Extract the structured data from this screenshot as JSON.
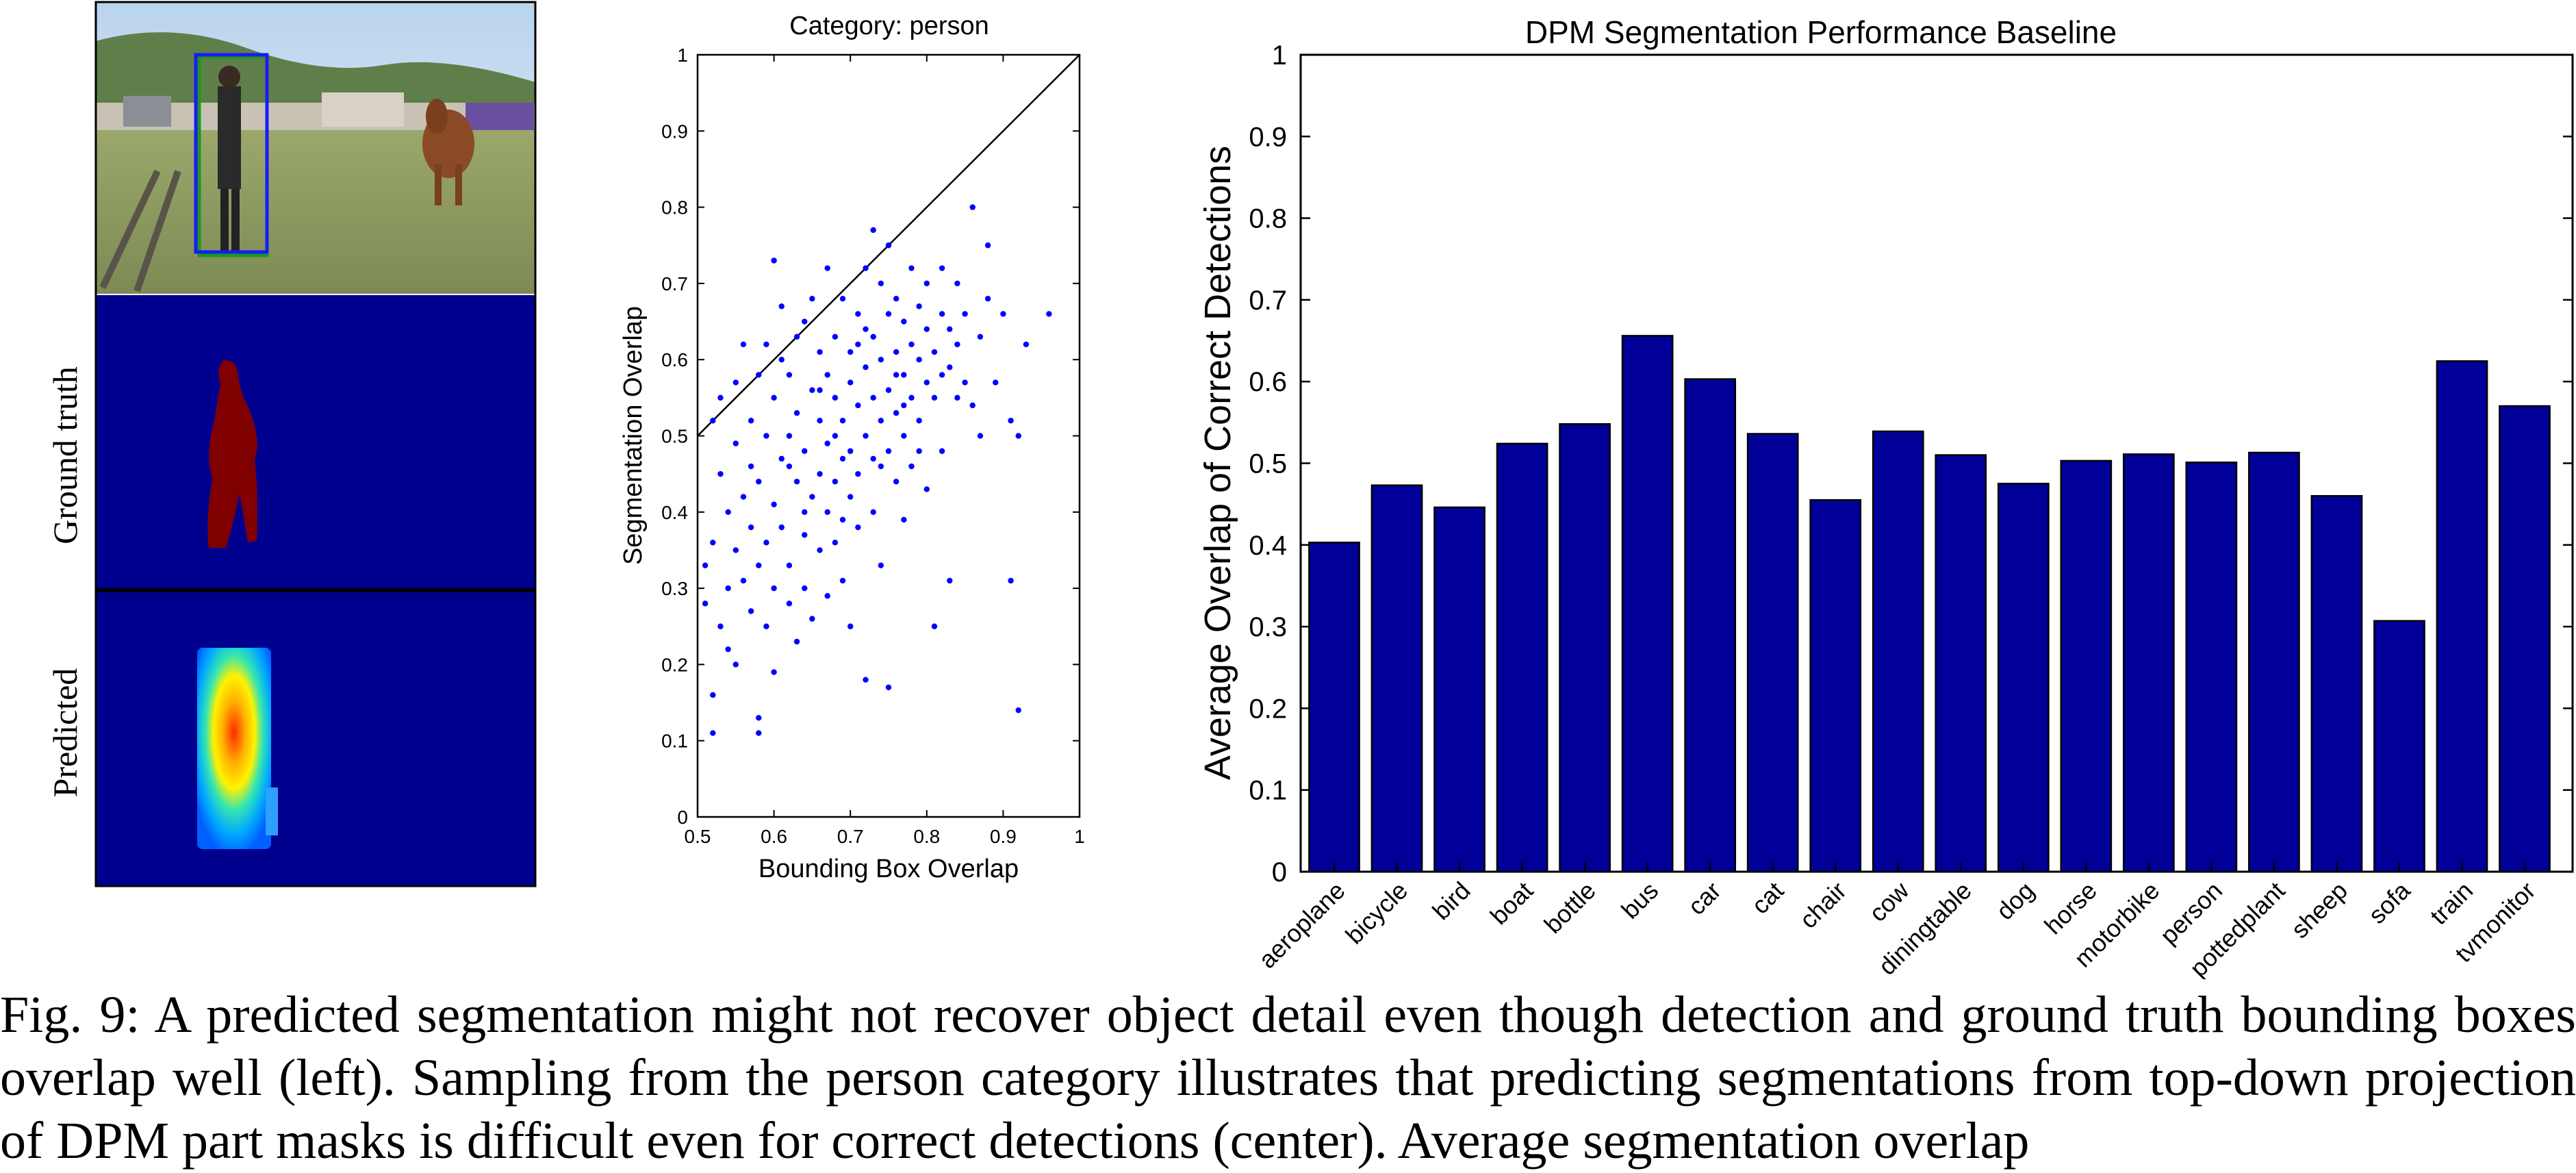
{
  "left_panel": {
    "row_labels": [
      "Ground truth",
      "Predicted"
    ]
  },
  "chart_data": [
    {
      "type": "scatter",
      "title": "Category: person",
      "xlabel": "Bounding Box Overlap",
      "ylabel": "Segmentation Overlap",
      "xlim": [
        0.5,
        1
      ],
      "ylim": [
        0,
        1
      ],
      "xticks": [
        "0.5",
        "0.6",
        "0.7",
        "0.8",
        "0.9",
        "1"
      ],
      "yticks": [
        "0",
        "0.1",
        "0.2",
        "0.3",
        "0.4",
        "0.5",
        "0.6",
        "0.7",
        "0.8",
        "0.9",
        "1"
      ],
      "reference_line": "y = x",
      "marker_color": "#0000ff",
      "points": [
        [
          0.51,
          0.28
        ],
        [
          0.51,
          0.33
        ],
        [
          0.52,
          0.16
        ],
        [
          0.52,
          0.11
        ],
        [
          0.52,
          0.52
        ],
        [
          0.52,
          0.36
        ],
        [
          0.53,
          0.45
        ],
        [
          0.53,
          0.25
        ],
        [
          0.53,
          0.55
        ],
        [
          0.54,
          0.4
        ],
        [
          0.54,
          0.22
        ],
        [
          0.54,
          0.3
        ],
        [
          0.55,
          0.49
        ],
        [
          0.55,
          0.57
        ],
        [
          0.55,
          0.35
        ],
        [
          0.55,
          0.2
        ],
        [
          0.56,
          0.42
        ],
        [
          0.56,
          0.31
        ],
        [
          0.56,
          0.62
        ],
        [
          0.57,
          0.46
        ],
        [
          0.57,
          0.27
        ],
        [
          0.57,
          0.38
        ],
        [
          0.57,
          0.52
        ],
        [
          0.58,
          0.13
        ],
        [
          0.58,
          0.11
        ],
        [
          0.58,
          0.33
        ],
        [
          0.58,
          0.58
        ],
        [
          0.58,
          0.44
        ],
        [
          0.59,
          0.36
        ],
        [
          0.59,
          0.5
        ],
        [
          0.59,
          0.62
        ],
        [
          0.59,
          0.25
        ],
        [
          0.6,
          0.19
        ],
        [
          0.6,
          0.41
        ],
        [
          0.6,
          0.55
        ],
        [
          0.6,
          0.73
        ],
        [
          0.6,
          0.3
        ],
        [
          0.61,
          0.47
        ],
        [
          0.61,
          0.38
        ],
        [
          0.61,
          0.6
        ],
        [
          0.61,
          0.67
        ],
        [
          0.62,
          0.28
        ],
        [
          0.62,
          0.5
        ],
        [
          0.62,
          0.33
        ],
        [
          0.62,
          0.58
        ],
        [
          0.63,
          0.44
        ],
        [
          0.63,
          0.63
        ],
        [
          0.63,
          0.23
        ],
        [
          0.63,
          0.53
        ],
        [
          0.64,
          0.37
        ],
        [
          0.64,
          0.48
        ],
        [
          0.64,
          0.65
        ],
        [
          0.64,
          0.3
        ],
        [
          0.65,
          0.42
        ],
        [
          0.65,
          0.56
        ],
        [
          0.65,
          0.26
        ],
        [
          0.65,
          0.68
        ],
        [
          0.66,
          0.45
        ],
        [
          0.66,
          0.52
        ],
        [
          0.66,
          0.35
        ],
        [
          0.66,
          0.61
        ],
        [
          0.67,
          0.4
        ],
        [
          0.67,
          0.49
        ],
        [
          0.67,
          0.58
        ],
        [
          0.67,
          0.72
        ],
        [
          0.67,
          0.29
        ],
        [
          0.68,
          0.44
        ],
        [
          0.68,
          0.55
        ],
        [
          0.68,
          0.63
        ],
        [
          0.68,
          0.36
        ],
        [
          0.69,
          0.47
        ],
        [
          0.69,
          0.52
        ],
        [
          0.69,
          0.68
        ],
        [
          0.69,
          0.31
        ],
        [
          0.7,
          0.42
        ],
        [
          0.7,
          0.57
        ],
        [
          0.7,
          0.61
        ],
        [
          0.7,
          0.48
        ],
        [
          0.7,
          0.25
        ],
        [
          0.71,
          0.54
        ],
        [
          0.71,
          0.45
        ],
        [
          0.71,
          0.66
        ],
        [
          0.71,
          0.38
        ],
        [
          0.72,
          0.5
        ],
        [
          0.72,
          0.59
        ],
        [
          0.72,
          0.72
        ],
        [
          0.72,
          0.18
        ],
        [
          0.73,
          0.47
        ],
        [
          0.73,
          0.55
        ],
        [
          0.73,
          0.63
        ],
        [
          0.73,
          0.77
        ],
        [
          0.73,
          0.4
        ],
        [
          0.74,
          0.52
        ],
        [
          0.74,
          0.6
        ],
        [
          0.74,
          0.7
        ],
        [
          0.74,
          0.33
        ],
        [
          0.75,
          0.48
        ],
        [
          0.75,
          0.56
        ],
        [
          0.75,
          0.66
        ],
        [
          0.75,
          0.17
        ],
        [
          0.75,
          0.75
        ],
        [
          0.76,
          0.53
        ],
        [
          0.76,
          0.61
        ],
        [
          0.76,
          0.44
        ],
        [
          0.76,
          0.68
        ],
        [
          0.77,
          0.5
        ],
        [
          0.77,
          0.58
        ],
        [
          0.77,
          0.65
        ],
        [
          0.77,
          0.39
        ],
        [
          0.78,
          0.55
        ],
        [
          0.78,
          0.62
        ],
        [
          0.78,
          0.72
        ],
        [
          0.78,
          0.46
        ],
        [
          0.79,
          0.52
        ],
        [
          0.79,
          0.6
        ],
        [
          0.79,
          0.67
        ],
        [
          0.8,
          0.57
        ],
        [
          0.8,
          0.64
        ],
        [
          0.8,
          0.43
        ],
        [
          0.8,
          0.7
        ],
        [
          0.81,
          0.25
        ],
        [
          0.81,
          0.55
        ],
        [
          0.81,
          0.61
        ],
        [
          0.82,
          0.66
        ],
        [
          0.82,
          0.48
        ],
        [
          0.82,
          0.72
        ],
        [
          0.83,
          0.59
        ],
        [
          0.83,
          0.31
        ],
        [
          0.83,
          0.64
        ],
        [
          0.84,
          0.55
        ],
        [
          0.84,
          0.7
        ],
        [
          0.84,
          0.62
        ],
        [
          0.85,
          0.57
        ],
        [
          0.85,
          0.66
        ],
        [
          0.86,
          0.54
        ],
        [
          0.86,
          0.8
        ],
        [
          0.87,
          0.63
        ],
        [
          0.87,
          0.5
        ],
        [
          0.88,
          0.68
        ],
        [
          0.88,
          0.75
        ],
        [
          0.89,
          0.57
        ],
        [
          0.9,
          0.66
        ],
        [
          0.91,
          0.31
        ],
        [
          0.91,
          0.52
        ],
        [
          0.92,
          0.5
        ],
        [
          0.92,
          0.14
        ],
        [
          0.93,
          0.62
        ],
        [
          0.96,
          0.66
        ],
        [
          0.62,
          0.46
        ],
        [
          0.66,
          0.56
        ],
        [
          0.69,
          0.39
        ],
        [
          0.71,
          0.62
        ],
        [
          0.74,
          0.46
        ],
        [
          0.77,
          0.54
        ],
        [
          0.79,
          0.48
        ],
        [
          0.82,
          0.58
        ],
        [
          0.64,
          0.4
        ],
        [
          0.68,
          0.5
        ],
        [
          0.72,
          0.64
        ],
        [
          0.76,
          0.58
        ]
      ]
    },
    {
      "type": "bar",
      "title": "DPM Segmentation Performance Baseline",
      "xlabel": "",
      "ylabel": "Average Overlap of Correct Detections",
      "ylim": [
        0,
        1
      ],
      "yticks": [
        "0",
        "0.1",
        "0.2",
        "0.3",
        "0.4",
        "0.5",
        "0.6",
        "0.7",
        "0.8",
        "0.9",
        "1"
      ],
      "bar_color": "#000099",
      "categories": [
        "aeroplane",
        "bicycle",
        "bird",
        "boat",
        "bottle",
        "bus",
        "car",
        "cat",
        "chair",
        "cow",
        "diningtable",
        "dog",
        "horse",
        "motorbike",
        "person",
        "pottedplant",
        "sheep",
        "sofa",
        "train",
        "tvmonitor"
      ],
      "values": [
        0.403,
        0.473,
        0.446,
        0.524,
        0.548,
        0.656,
        0.603,
        0.536,
        0.455,
        0.539,
        0.51,
        0.475,
        0.503,
        0.511,
        0.501,
        0.513,
        0.46,
        0.307,
        0.625,
        0.57
      ]
    }
  ],
  "caption": "Fig. 9: A predicted segmentation might not recover object detail even though detection and ground truth bounding boxes overlap well (left). Sampling from the person category illustrates that predicting segmentations from top-down projection of DPM part masks is difficult even for correct detections (center). Average segmentation overlap"
}
